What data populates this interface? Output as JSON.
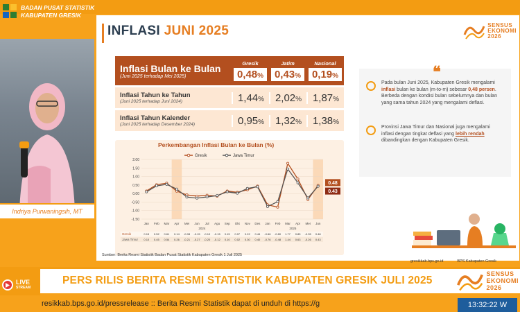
{
  "header": {
    "org_line1": "BADAN PUSAT STATISTIK",
    "org_line2": "KABUPATEN GRESIK"
  },
  "speaker": {
    "name": "Indriya Purwaningsih, MT"
  },
  "slide": {
    "title_main": "INFLASI",
    "title_accent": "JUNI 2025",
    "sensus_line1": "SENSUS",
    "sensus_line2": "EKONOMI",
    "sensus_line3": "2026",
    "table": {
      "headline_label": "Inflasi Bulan ke Bulan",
      "headline_sub": "(Juni 2025 terhadap Mei 2025)",
      "regions": [
        "Gresik",
        "Jatim",
        "Nasional"
      ],
      "mtm_values": [
        "0,48",
        "0,43",
        "0,19"
      ],
      "rows": [
        {
          "label": "Inflasi Tahun ke Tahun",
          "sub": "(Juni 2025 terhadap Juni 2024)",
          "values": [
            "1,44",
            "2,02",
            "1,87"
          ]
        },
        {
          "label": "Inflasi Tahun Kalender",
          "sub": "(Juni 2025 terhadap Desember 2024)",
          "values": [
            "0,95",
            "1,32",
            "1,38"
          ]
        }
      ],
      "percent": "%"
    },
    "chart_title": "Perkembangan Inflasi Bulan ke Bulan (%)",
    "source": "Sumber: Berita Resmi Statistik Badan Pusat Statistik Kabupaten Gresik 1 Juli 2025",
    "para1_a": "Pada bulan Juni 2025, Kabupaten Gresik mengalami ",
    "para1_b": "inflasi",
    "para1_c": " bulan ke bulan (m-to-m) sebesar ",
    "para1_d": "0,48 persen",
    "para1_e": ". Berbeda dengan kondisi bulan sebelumnya dan bulan yang sama tahun 2024 yang mengalami deflasi.",
    "para2_a": "Provinsi Jawa Timur dan Nasional juga mengalami inflasi dengan tingkat deflasi yang ",
    "para2_b": "lebih rendah",
    "para2_c": " dibandingkan dengan Kabupaten Gresik.",
    "footer_web": "gresikkab.bps.go.id",
    "footer_ig": "BPS Kabupaten Gresik"
  },
  "lower_third": {
    "live_label": "LIVE",
    "live_sub": "STREAM",
    "headline": "PERS RILIS BERITA RESMI STATISTIK KABUPATEN GRESIK JULI 2025",
    "ticker": "resikkab.bps.go.id/pressrelease :: Berita Resmi Statistik dapat di unduh di https://g",
    "clock": "13:32:22 W"
  },
  "chart_data": {
    "type": "line",
    "title": "Perkembangan Inflasi Bulan ke Bulan (%)",
    "categories": [
      "Jan",
      "Feb",
      "Mar",
      "Apr",
      "Mei",
      "Jun",
      "Jul",
      "Agu",
      "Sep",
      "Okt",
      "Nov",
      "Des",
      "Jan",
      "Feb",
      "Mar",
      "Apr",
      "Mei",
      "Jun"
    ],
    "year_labels": [
      "2024",
      "2025"
    ],
    "ylim": [
      -1.5,
      2.0
    ],
    "yticks": [
      "2.00",
      "1.50",
      "1.00",
      "0.50",
      "0.00",
      "-0.50",
      "-1.00",
      "-1.50"
    ],
    "series": [
      {
        "name": "Gresik",
        "color": "#b34f1f",
        "values": [
          0.15,
          0.52,
          0.61,
          0.14,
          -0.08,
          -0.15,
          -0.1,
          -0.15,
          0.15,
          0.07,
          0.22,
          0.44,
          -0.66,
          -0.8,
          1.77,
          0.85,
          -0.35,
          0.48
        ]
      },
      {
        "name": "Jawa Timur",
        "color": "#555555",
        "values": [
          0.1,
          0.45,
          0.54,
          0.26,
          -0.21,
          -0.27,
          -0.2,
          -0.12,
          0.1,
          0.02,
          0.3,
          0.4,
          -0.76,
          -0.48,
          1.44,
          0.63,
          -0.26,
          0.43
        ]
      }
    ],
    "end_labels": [
      "0.48",
      "0.43"
    ]
  }
}
